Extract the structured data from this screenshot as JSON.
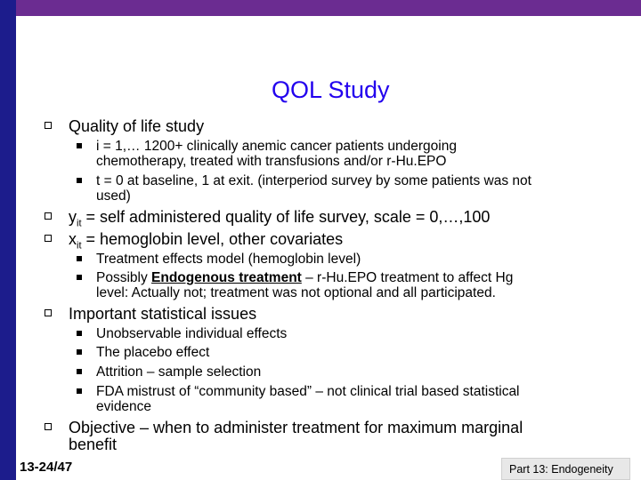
{
  "title": "QOL Study",
  "items": [
    {
      "text": "Quality of life study"
    },
    {
      "text": "i = 1,… 1200+ clinically anemic cancer patients undergoing"
    },
    {
      "text": "chemotherapy, treated with transfusions and/or r-Hu.EPO"
    },
    {
      "text": "t = 0 at baseline, 1 at exit. (interperiod survey by some patients was not"
    },
    {
      "text": "used)"
    },
    {
      "var": "y",
      "sub": "it",
      "text": " = self administered quality of life survey, scale = 0,…,100"
    },
    {
      "var": "x",
      "sub": "it",
      "text": " = hemoglobin level, other covariates"
    },
    {
      "text": "Treatment effects model (hemoglobin level)"
    },
    {
      "pre": "Possibly ",
      "underline": "Endogenous treatment",
      "post": " – r-Hu.EPO treatment to affect Hg"
    },
    {
      "text": "level: Actually not; treatment was not optional and all participated."
    },
    {
      "text": "Important statistical issues"
    },
    {
      "text": "Unobservable individual effects"
    },
    {
      "text": "The placebo effect"
    },
    {
      "text": "Attrition – sample selection"
    },
    {
      "text": "FDA mistrust of “community based” – not clinical trial based statistical"
    },
    {
      "text": "evidence"
    },
    {
      "text": "Objective – when to administer treatment for maximum marginal"
    },
    {
      "text": "benefit"
    }
  ],
  "footer": {
    "slide_number": "13-24/47",
    "part_label": "Part 13: Endogeneity"
  },
  "colors": {
    "top_bar": "#6b2c91",
    "left_bar": "#1c1c8c",
    "title": "#2200ee"
  }
}
